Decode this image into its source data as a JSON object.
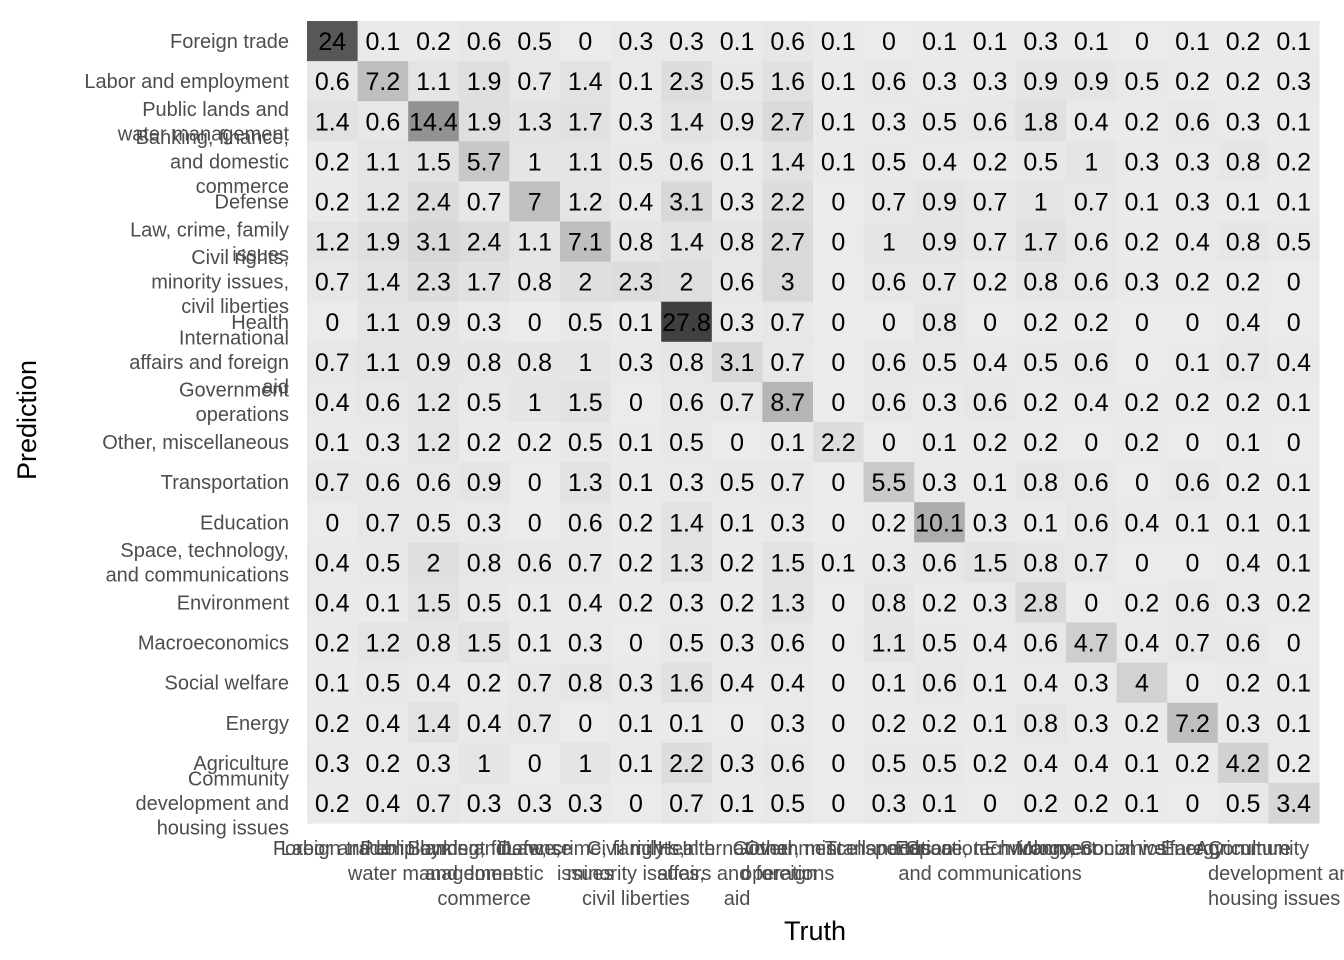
{
  "chart_data": {
    "type": "heatmap",
    "xlabel": "Truth",
    "ylabel": "Prediction",
    "categories": [
      "Foreign trade",
      "Labor and employment",
      "Public lands and water management",
      "Banking, finance, and domestic commerce",
      "Defense",
      "Law, crime, family issues",
      "Civil rights, minority issues, civil liberties",
      "Health",
      "International affairs and foreign aid",
      "Government operations",
      "Other, miscellaneous",
      "Transportation",
      "Education",
      "Space, technology, and communications",
      "Environment",
      "Macroeconomics",
      "Social welfare",
      "Energy",
      "Agriculture",
      "Community development and housing issues"
    ],
    "y_label_lines": [
      [
        "Foreign trade"
      ],
      [
        "Labor and employment"
      ],
      [
        "Public lands and",
        "water management"
      ],
      [
        "Banking, finance,",
        "and domestic",
        "commerce"
      ],
      [
        "Defense"
      ],
      [
        "Law, crime, family",
        "issues"
      ],
      [
        "Civil rights,",
        "minority issues,",
        "civil liberties"
      ],
      [
        "Health"
      ],
      [
        "International",
        "affairs and foreign",
        "aid"
      ],
      [
        "Government",
        "operations"
      ],
      [
        "Other, miscellaneous"
      ],
      [
        "Transportation"
      ],
      [
        "Education"
      ],
      [
        "Space, technology,",
        "and communications"
      ],
      [
        "Environment"
      ],
      [
        "Macroeconomics"
      ],
      [
        "Social welfare"
      ],
      [
        "Energy"
      ],
      [
        "Agriculture"
      ],
      [
        "Community",
        "development and",
        "housing issues"
      ]
    ],
    "x_label_lines": [
      [
        "Foreign trade"
      ],
      [
        "Labor and employment"
      ],
      [
        "Public lands and",
        "water management"
      ],
      [
        "Banking, finance,",
        "and domestic",
        "commerce"
      ],
      [
        "Defense"
      ],
      [
        "Law, crime, family",
        "issues"
      ],
      [
        "Civil rights,",
        "minority issues,",
        "civil liberties"
      ],
      [
        "Health"
      ],
      [
        "International",
        "affairs and foreign",
        "aid"
      ],
      [
        "Government",
        "operations"
      ],
      [
        "Other, miscellaneous"
      ],
      [
        "Transportation"
      ],
      [
        "Education"
      ],
      [
        "Space, technology,",
        "and communications"
      ],
      [
        "Environment"
      ],
      [
        "Macroeconomics"
      ],
      [
        "Social welfare"
      ],
      [
        "Energy"
      ],
      [
        "Agriculture"
      ],
      [
        "Community",
        "development and",
        "housing issues"
      ]
    ],
    "values": [
      [
        "24",
        "0.1",
        "0.2",
        "0.6",
        "0.5",
        "0",
        "0.3",
        "0.3",
        "0.1",
        "0.6",
        "0.1",
        "0",
        "0.1",
        "0.1",
        "0.3",
        "0.1",
        "0",
        "0.1",
        "0.2",
        "0.1"
      ],
      [
        "0.6",
        "7.2",
        "1.1",
        "1.9",
        "0.7",
        "1.4",
        "0.1",
        "2.3",
        "0.5",
        "1.6",
        "0.1",
        "0.6",
        "0.3",
        "0.3",
        "0.9",
        "0.9",
        "0.5",
        "0.2",
        "0.2",
        "0.3"
      ],
      [
        "1.4",
        "0.6",
        "14.4",
        "1.9",
        "1.3",
        "1.7",
        "0.3",
        "1.4",
        "0.9",
        "2.7",
        "0.1",
        "0.3",
        "0.5",
        "0.6",
        "1.8",
        "0.4",
        "0.2",
        "0.6",
        "0.3",
        "0.1"
      ],
      [
        "0.2",
        "1.1",
        "1.5",
        "5.7",
        "1",
        "1.1",
        "0.5",
        "0.6",
        "0.1",
        "1.4",
        "0.1",
        "0.5",
        "0.4",
        "0.2",
        "0.5",
        "1",
        "0.3",
        "0.3",
        "0.8",
        "0.2"
      ],
      [
        "0.2",
        "1.2",
        "2.4",
        "0.7",
        "7",
        "1.2",
        "0.4",
        "3.1",
        "0.3",
        "2.2",
        "0",
        "0.7",
        "0.9",
        "0.7",
        "1",
        "0.7",
        "0.1",
        "0.3",
        "0.1",
        "0.1"
      ],
      [
        "1.2",
        "1.9",
        "3.1",
        "2.4",
        "1.1",
        "7.1",
        "0.8",
        "1.4",
        "0.8",
        "2.7",
        "0",
        "1",
        "0.9",
        "0.7",
        "1.7",
        "0.6",
        "0.2",
        "0.4",
        "0.8",
        "0.5"
      ],
      [
        "0.7",
        "1.4",
        "2.3",
        "1.7",
        "0.8",
        "2",
        "2.3",
        "2",
        "0.6",
        "3",
        "0",
        "0.6",
        "0.7",
        "0.2",
        "0.8",
        "0.6",
        "0.3",
        "0.2",
        "0.2",
        "0"
      ],
      [
        "0",
        "1.1",
        "0.9",
        "0.3",
        "0",
        "0.5",
        "0.1",
        "27.8",
        "0.3",
        "0.7",
        "0",
        "0",
        "0.8",
        "0",
        "0.2",
        "0.2",
        "0",
        "0",
        "0.4",
        "0"
      ],
      [
        "0.7",
        "1.1",
        "0.9",
        "0.8",
        "0.8",
        "1",
        "0.3",
        "0.8",
        "3.1",
        "0.7",
        "0",
        "0.6",
        "0.5",
        "0.4",
        "0.5",
        "0.6",
        "0",
        "0.1",
        "0.7",
        "0.4"
      ],
      [
        "0.4",
        "0.6",
        "1.2",
        "0.5",
        "1",
        "1.5",
        "0",
        "0.6",
        "0.7",
        "8.7",
        "0",
        "0.6",
        "0.3",
        "0.6",
        "0.2",
        "0.4",
        "0.2",
        "0.2",
        "0.2",
        "0.1"
      ],
      [
        "0.1",
        "0.3",
        "1.2",
        "0.2",
        "0.2",
        "0.5",
        "0.1",
        "0.5",
        "0",
        "0.1",
        "2.2",
        "0",
        "0.1",
        "0.2",
        "0.2",
        "0",
        "0.2",
        "0",
        "0.1",
        "0"
      ],
      [
        "0.7",
        "0.6",
        "0.6",
        "0.9",
        "0",
        "1.3",
        "0.1",
        "0.3",
        "0.5",
        "0.7",
        "0",
        "5.5",
        "0.3",
        "0.1",
        "0.8",
        "0.6",
        "0",
        "0.6",
        "0.2",
        "0.1"
      ],
      [
        "0",
        "0.7",
        "0.5",
        "0.3",
        "0",
        "0.6",
        "0.2",
        "1.4",
        "0.1",
        "0.3",
        "0",
        "0.2",
        "10.1",
        "0.3",
        "0.1",
        "0.6",
        "0.4",
        "0.1",
        "0.1",
        "0.1"
      ],
      [
        "0.4",
        "0.5",
        "2",
        "0.8",
        "0.6",
        "0.7",
        "0.2",
        "1.3",
        "0.2",
        "1.5",
        "0.1",
        "0.3",
        "0.6",
        "1.5",
        "0.8",
        "0.7",
        "0",
        "0",
        "0.4",
        "0.1"
      ],
      [
        "0.4",
        "0.1",
        "1.5",
        "0.5",
        "0.1",
        "0.4",
        "0.2",
        "0.3",
        "0.2",
        "1.3",
        "0",
        "0.8",
        "0.2",
        "0.3",
        "2.8",
        "0",
        "0.2",
        "0.6",
        "0.3",
        "0.2"
      ],
      [
        "0.2",
        "1.2",
        "0.8",
        "1.5",
        "0.1",
        "0.3",
        "0",
        "0.5",
        "0.3",
        "0.6",
        "0",
        "1.1",
        "0.5",
        "0.4",
        "0.6",
        "4.7",
        "0.4",
        "0.7",
        "0.6",
        "0"
      ],
      [
        "0.1",
        "0.5",
        "0.4",
        "0.2",
        "0.7",
        "0.8",
        "0.3",
        "1.6",
        "0.4",
        "0.4",
        "0",
        "0.1",
        "0.6",
        "0.1",
        "0.4",
        "0.3",
        "4",
        "0",
        "0.2",
        "0.1"
      ],
      [
        "0.2",
        "0.4",
        "1.4",
        "0.4",
        "0.7",
        "0",
        "0.1",
        "0.1",
        "0",
        "0.3",
        "0",
        "0.2",
        "0.2",
        "0.1",
        "0.8",
        "0.3",
        "0.2",
        "7.2",
        "0.3",
        "0.1"
      ],
      [
        "0.3",
        "0.2",
        "0.3",
        "1",
        "0",
        "1",
        "0.1",
        "2.2",
        "0.3",
        "0.6",
        "0",
        "0.5",
        "0.5",
        "0.2",
        "0.4",
        "0.4",
        "0.1",
        "0.2",
        "4.2",
        "0.2"
      ],
      [
        "0.2",
        "0.4",
        "0.7",
        "0.3",
        "0.3",
        "0.3",
        "0",
        "0.7",
        "0.1",
        "0.5",
        "0",
        "0.3",
        "0.1",
        "0",
        "0.2",
        "0.2",
        "0.1",
        "0",
        "0.5",
        "3.4"
      ]
    ],
    "color_scale": {
      "low": "#ebebeb",
      "high": "#404040",
      "min": 0,
      "max": 27.8
    },
    "grid": false,
    "legend": "none"
  }
}
